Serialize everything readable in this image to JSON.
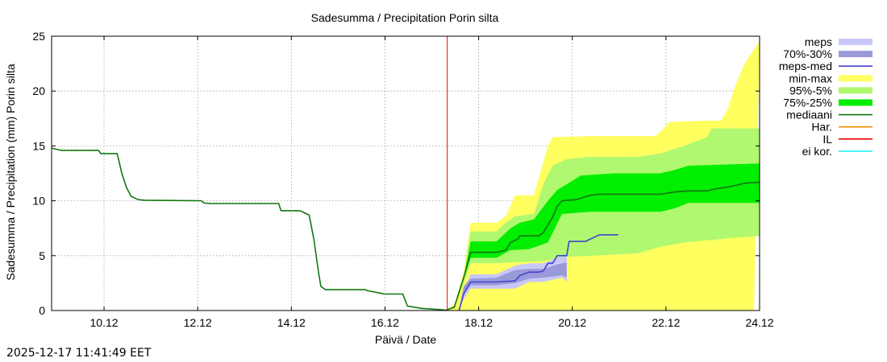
{
  "chart_data": {
    "type": "area",
    "title": "Sadesumma / Precipitation  Porin silta",
    "xlabel": "Päivä / Date",
    "ylabel": "Sadesumma / Precipitation (mm)  Porin silta",
    "xlim": [
      9.0,
      24.12
    ],
    "ylim": [
      0,
      25
    ],
    "grid": true,
    "legend_position": "right",
    "x_unit": "day of December (decimal)",
    "x_ticks": [
      {
        "value": 10.12,
        "label": "10.12"
      },
      {
        "value": 12.12,
        "label": "12.12"
      },
      {
        "value": 14.12,
        "label": "14.12"
      },
      {
        "value": 16.12,
        "label": "16.12"
      },
      {
        "value": 18.12,
        "label": "18.12"
      },
      {
        "value": 20.12,
        "label": "20.12"
      },
      {
        "value": 22.12,
        "label": "22.12"
      },
      {
        "value": 24.12,
        "label": "24.12"
      }
    ],
    "y_ticks": [
      0,
      5,
      10,
      15,
      20,
      25
    ],
    "legend": [
      {
        "label": "meps",
        "style": "band",
        "color": "#c8c8f8"
      },
      {
        "label": "70%-30%",
        "style": "band",
        "color": "#9a9ada"
      },
      {
        "label": "meps-med",
        "style": "line",
        "color": "#4444cc"
      },
      {
        "label": "min-max",
        "style": "band",
        "color": "#ffff60"
      },
      {
        "label": "95%-5%",
        "style": "band",
        "color": "#b0f870"
      },
      {
        "label": "75%-25%",
        "style": "band",
        "color": "#00ee00"
      },
      {
        "label": "mediaani",
        "style": "line",
        "color": "#117711"
      },
      {
        "label": "Har.",
        "style": "line",
        "color": "#ff8800"
      },
      {
        "label": "IL",
        "style": "line",
        "color": "#ee0000"
      },
      {
        "label": "ei kor.",
        "style": "line",
        "color": "#22eeee"
      }
    ],
    "now_line": {
      "name": "IL",
      "x": 17.45,
      "color": "#ee0000"
    },
    "series": [
      {
        "name": "history",
        "color": "#117711",
        "points": [
          [
            9.0,
            14.8
          ],
          [
            9.2,
            14.6
          ],
          [
            10.0,
            14.6
          ],
          [
            10.05,
            14.3
          ],
          [
            10.4,
            14.3
          ],
          [
            10.5,
            12.5
          ],
          [
            10.6,
            11.2
          ],
          [
            10.7,
            10.4
          ],
          [
            10.85,
            10.1
          ],
          [
            11.0,
            10.05
          ],
          [
            12.2,
            10.0
          ],
          [
            12.25,
            9.8
          ],
          [
            12.4,
            9.75
          ],
          [
            13.85,
            9.75
          ],
          [
            13.9,
            9.1
          ],
          [
            14.3,
            9.1
          ],
          [
            14.4,
            8.9
          ],
          [
            14.5,
            8.7
          ],
          [
            14.6,
            6.5
          ],
          [
            14.7,
            3.5
          ],
          [
            14.75,
            2.2
          ],
          [
            14.85,
            1.9
          ],
          [
            15.7,
            1.9
          ],
          [
            15.75,
            1.8
          ],
          [
            16.0,
            1.6
          ],
          [
            16.1,
            1.5
          ],
          [
            16.5,
            1.5
          ],
          [
            16.6,
            0.4
          ],
          [
            16.9,
            0.2
          ],
          [
            17.4,
            0.05
          ]
        ]
      },
      {
        "name": "min-max",
        "color": "#ffff60",
        "lower": [
          [
            17.4,
            0
          ],
          [
            17.6,
            0
          ],
          [
            17.8,
            0
          ],
          [
            17.95,
            0
          ],
          [
            18.5,
            0
          ],
          [
            19.0,
            0
          ],
          [
            19.5,
            0
          ],
          [
            20.0,
            0
          ],
          [
            21.0,
            0
          ],
          [
            22.0,
            0
          ],
          [
            23.0,
            0
          ],
          [
            24.0,
            0
          ]
        ],
        "upper": [
          [
            17.4,
            0
          ],
          [
            17.6,
            0.5
          ],
          [
            17.8,
            3.5
          ],
          [
            17.95,
            8.0
          ],
          [
            18.5,
            8.0
          ],
          [
            18.7,
            8.6
          ],
          [
            18.9,
            10.5
          ],
          [
            19.3,
            10.5
          ],
          [
            19.4,
            12.0
          ],
          [
            19.5,
            13.5
          ],
          [
            19.6,
            15.0
          ],
          [
            19.7,
            15.8
          ],
          [
            20.5,
            15.9
          ],
          [
            21.5,
            15.9
          ],
          [
            21.9,
            15.9
          ],
          [
            22.05,
            16.5
          ],
          [
            22.2,
            17.2
          ],
          [
            23.0,
            17.3
          ],
          [
            23.3,
            17.3
          ],
          [
            23.45,
            18.5
          ],
          [
            23.6,
            20.5
          ],
          [
            23.8,
            22.5
          ],
          [
            24.0,
            23.8
          ],
          [
            24.12,
            24.5
          ]
        ]
      },
      {
        "name": "95%-5%",
        "color": "#b0f870",
        "lower": [
          [
            17.4,
            0
          ],
          [
            17.6,
            0.2
          ],
          [
            17.8,
            2.5
          ],
          [
            17.95,
            4.3
          ],
          [
            18.5,
            4.3
          ],
          [
            18.9,
            4.4
          ],
          [
            19.5,
            4.5
          ],
          [
            20.0,
            4.9
          ],
          [
            20.6,
            5.0
          ],
          [
            21.5,
            5.2
          ],
          [
            22.0,
            5.8
          ],
          [
            22.5,
            6.2
          ],
          [
            23.0,
            6.4
          ],
          [
            23.5,
            6.6
          ],
          [
            24.12,
            6.8
          ]
        ],
        "upper": [
          [
            17.4,
            0
          ],
          [
            17.6,
            0.4
          ],
          [
            17.8,
            3.0
          ],
          [
            17.95,
            7.2
          ],
          [
            18.5,
            7.2
          ],
          [
            18.7,
            8.0
          ],
          [
            18.9,
            8.6
          ],
          [
            19.3,
            8.8
          ],
          [
            19.5,
            11.5
          ],
          [
            19.7,
            13.2
          ],
          [
            20.0,
            13.8
          ],
          [
            20.5,
            14.0
          ],
          [
            21.5,
            14.0
          ],
          [
            22.0,
            14.3
          ],
          [
            22.5,
            15.0
          ],
          [
            23.0,
            15.8
          ],
          [
            23.1,
            16.6
          ],
          [
            24.12,
            16.6
          ]
        ]
      },
      {
        "name": "75%-25%",
        "color": "#00ee00",
        "lower": [
          [
            17.4,
            0
          ],
          [
            17.6,
            0.3
          ],
          [
            17.8,
            2.8
          ],
          [
            17.95,
            4.8
          ],
          [
            18.5,
            4.8
          ],
          [
            18.8,
            5.5
          ],
          [
            19.2,
            5.6
          ],
          [
            19.6,
            6.2
          ],
          [
            19.9,
            8.8
          ],
          [
            20.5,
            9.0
          ],
          [
            21.5,
            9.0
          ],
          [
            22.0,
            9.0
          ],
          [
            22.3,
            9.3
          ],
          [
            22.6,
            9.8
          ],
          [
            24.12,
            9.8
          ]
        ],
        "upper": [
          [
            17.4,
            0
          ],
          [
            17.6,
            0.4
          ],
          [
            17.8,
            3.0
          ],
          [
            17.95,
            6.3
          ],
          [
            18.5,
            6.3
          ],
          [
            18.8,
            7.5
          ],
          [
            19.0,
            8.0
          ],
          [
            19.3,
            8.3
          ],
          [
            19.6,
            10.0
          ],
          [
            19.8,
            11.0
          ],
          [
            20.0,
            11.5
          ],
          [
            20.3,
            12.3
          ],
          [
            21.0,
            12.5
          ],
          [
            22.0,
            12.5
          ],
          [
            22.3,
            12.8
          ],
          [
            22.6,
            13.2
          ],
          [
            24.12,
            13.4
          ]
        ]
      },
      {
        "name": "mediaani",
        "color": "#117711",
        "points": [
          [
            17.4,
            0
          ],
          [
            17.6,
            0.3
          ],
          [
            17.8,
            3.0
          ],
          [
            17.95,
            5.3
          ],
          [
            18.5,
            5.3
          ],
          [
            18.7,
            5.5
          ],
          [
            18.8,
            6.2
          ],
          [
            18.95,
            6.5
          ],
          [
            19.0,
            6.8
          ],
          [
            19.4,
            6.8
          ],
          [
            19.5,
            7.1
          ],
          [
            19.6,
            7.8
          ],
          [
            19.7,
            8.5
          ],
          [
            19.8,
            9.5
          ],
          [
            19.9,
            10.0
          ],
          [
            20.2,
            10.1
          ],
          [
            20.35,
            10.3
          ],
          [
            20.5,
            10.5
          ],
          [
            20.7,
            10.6
          ],
          [
            21.5,
            10.6
          ],
          [
            22.0,
            10.6
          ],
          [
            22.3,
            10.8
          ],
          [
            22.6,
            10.9
          ],
          [
            23.0,
            10.9
          ],
          [
            23.2,
            11.1
          ],
          [
            23.5,
            11.3
          ],
          [
            23.8,
            11.6
          ],
          [
            24.12,
            11.7
          ]
        ]
      },
      {
        "name": "meps",
        "color": "#c8c8f8",
        "lower": [
          [
            17.7,
            0
          ],
          [
            17.8,
            1.0
          ],
          [
            17.95,
            2.0
          ],
          [
            18.5,
            2.0
          ],
          [
            18.9,
            2.0
          ],
          [
            19.2,
            2.6
          ],
          [
            19.5,
            2.6
          ],
          [
            19.9,
            3.0
          ],
          [
            20.0,
            2.6
          ]
        ],
        "upper": [
          [
            17.7,
            0
          ],
          [
            17.8,
            2.0
          ],
          [
            17.95,
            3.3
          ],
          [
            18.5,
            3.3
          ],
          [
            18.9,
            4.1
          ],
          [
            19.2,
            4.3
          ],
          [
            19.5,
            4.3
          ],
          [
            19.8,
            4.8
          ],
          [
            20.0,
            5.0
          ]
        ]
      },
      {
        "name": "70%-30%",
        "color": "#9a9ada",
        "lower": [
          [
            17.7,
            0
          ],
          [
            17.8,
            1.5
          ],
          [
            17.95,
            2.3
          ],
          [
            18.5,
            2.3
          ],
          [
            18.9,
            2.5
          ],
          [
            19.2,
            2.9
          ],
          [
            19.5,
            3.0
          ],
          [
            19.9,
            3.2
          ],
          [
            20.0,
            3.0
          ]
        ],
        "upper": [
          [
            17.7,
            0
          ],
          [
            17.8,
            2.2
          ],
          [
            17.95,
            2.9
          ],
          [
            18.5,
            3.0
          ],
          [
            18.9,
            3.7
          ],
          [
            19.2,
            3.8
          ],
          [
            19.5,
            3.8
          ],
          [
            19.8,
            4.2
          ],
          [
            20.0,
            4.4
          ]
        ]
      },
      {
        "name": "meps-med",
        "color": "#4444cc",
        "points": [
          [
            17.7,
            0
          ],
          [
            17.8,
            1.5
          ],
          [
            17.95,
            2.6
          ],
          [
            18.5,
            2.6
          ],
          [
            18.9,
            2.7
          ],
          [
            19.0,
            3.2
          ],
          [
            19.2,
            3.5
          ],
          [
            19.4,
            3.5
          ],
          [
            19.5,
            3.6
          ],
          [
            19.6,
            4.3
          ],
          [
            19.7,
            4.3
          ],
          [
            19.8,
            5.0
          ],
          [
            20.0,
            5.0
          ],
          [
            20.05,
            6.3
          ],
          [
            20.4,
            6.3
          ],
          [
            20.55,
            6.6
          ],
          [
            20.7,
            6.9
          ],
          [
            21.1,
            6.9
          ]
        ]
      }
    ]
  },
  "footer": {
    "timestamp": "2025-12-17 11:41:49 EET"
  }
}
